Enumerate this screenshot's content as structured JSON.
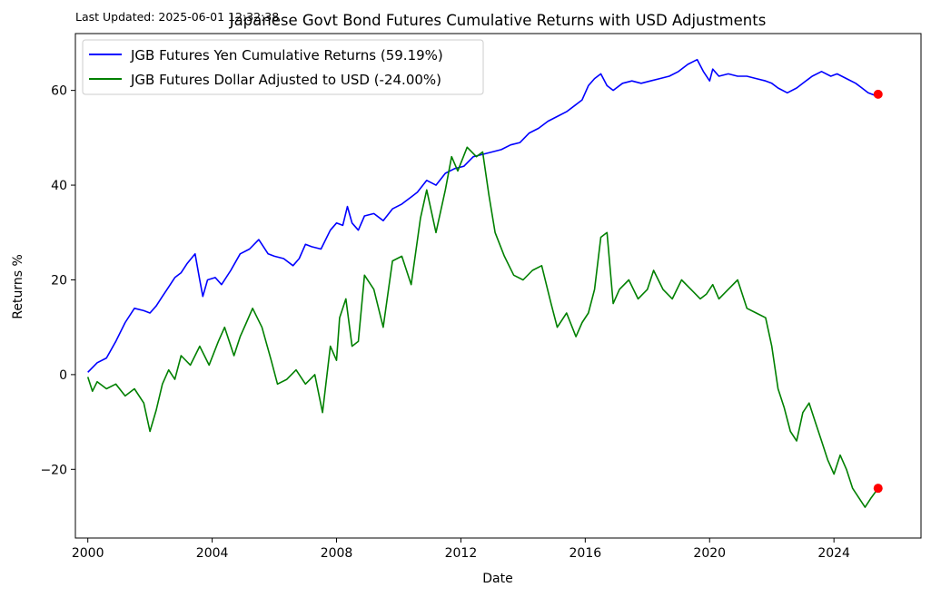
{
  "chart_data": {
    "type": "line",
    "title": "Japanese Govt Bond Futures Cumulative Returns with USD Adjustments",
    "annotation": "Last Updated: 2025-06-01 12:32:38",
    "xlabel": "Date",
    "ylabel": "Returns %",
    "xlim": [
      1999.6,
      2026.8
    ],
    "ylim": [
      -34.5,
      72
    ],
    "x_ticks": [
      2000,
      2004,
      2008,
      2012,
      2016,
      2020,
      2024
    ],
    "x_tick_labels": [
      "2000",
      "2004",
      "2008",
      "2012",
      "2016",
      "2020",
      "2024"
    ],
    "y_ticks": [
      -20,
      0,
      20,
      40,
      60
    ],
    "y_tick_labels": [
      "−20",
      "0",
      "20",
      "40",
      "60"
    ],
    "grid": false,
    "legend_position": "top-left",
    "series": [
      {
        "name": "JGB Futures Yen Cumulative Returns (59.19%)",
        "color": "#0000ff",
        "x": [
          2000.0,
          2000.3,
          2000.6,
          2000.9,
          2001.2,
          2001.5,
          2001.8,
          2002.0,
          2002.2,
          2002.4,
          2002.6,
          2002.8,
          2003.0,
          2003.2,
          2003.45,
          2003.6,
          2003.7,
          2003.85,
          2004.1,
          2004.3,
          2004.6,
          2004.9,
          2005.2,
          2005.5,
          2005.8,
          2006.0,
          2006.3,
          2006.6,
          2006.8,
          2007.0,
          2007.2,
          2007.5,
          2007.8,
          2008.0,
          2008.2,
          2008.35,
          2008.5,
          2008.7,
          2008.9,
          2009.2,
          2009.5,
          2009.8,
          2010.1,
          2010.4,
          2010.6,
          2010.9,
          2011.2,
          2011.5,
          2011.8,
          2012.1,
          2012.4,
          2012.7,
          2013.0,
          2013.3,
          2013.6,
          2013.9,
          2014.2,
          2014.5,
          2014.8,
          2015.1,
          2015.4,
          2015.7,
          2015.9,
          2016.1,
          2016.3,
          2016.5,
          2016.7,
          2016.9,
          2017.2,
          2017.5,
          2017.8,
          2018.1,
          2018.4,
          2018.7,
          2019.0,
          2019.3,
          2019.6,
          2019.8,
          2020.0,
          2020.1,
          2020.3,
          2020.6,
          2020.9,
          2021.2,
          2021.5,
          2021.8,
          2022.0,
          2022.2,
          2022.5,
          2022.8,
          2023.0,
          2023.3,
          2023.6,
          2023.9,
          2024.1,
          2024.4,
          2024.7,
          2024.9,
          2025.1,
          2025.3,
          2025.42
        ],
        "y": [
          0.5,
          2.5,
          3.5,
          7.0,
          11.0,
          14.0,
          13.5,
          13.0,
          14.5,
          16.5,
          18.5,
          20.5,
          21.5,
          23.5,
          25.5,
          20.0,
          16.5,
          20.0,
          20.5,
          19.0,
          22.0,
          25.5,
          26.5,
          28.5,
          25.5,
          25.0,
          24.5,
          23.0,
          24.5,
          27.5,
          27.0,
          26.5,
          30.5,
          32.0,
          31.5,
          35.5,
          32.0,
          30.5,
          33.5,
          34.0,
          32.5,
          35.0,
          36.0,
          37.5,
          38.5,
          41.0,
          40.0,
          42.5,
          43.5,
          44.0,
          46.0,
          46.5,
          47.0,
          47.5,
          48.5,
          49.0,
          51.0,
          52.0,
          53.5,
          54.5,
          55.5,
          57.0,
          58.0,
          61.0,
          62.5,
          63.5,
          61.0,
          60.0,
          61.5,
          62.0,
          61.5,
          62.0,
          62.5,
          63.0,
          64.0,
          65.5,
          66.5,
          64.0,
          62.0,
          64.5,
          63.0,
          63.5,
          63.0,
          63.0,
          62.5,
          62.0,
          61.5,
          60.5,
          59.5,
          60.5,
          61.5,
          63.0,
          64.0,
          63.0,
          63.5,
          62.5,
          61.5,
          60.5,
          59.5,
          59.0,
          59.19
        ]
      },
      {
        "name": "JGB Futures Dollar Adjusted to USD (-24.00%)",
        "color": "#008000",
        "x": [
          2000.0,
          2000.15,
          2000.3,
          2000.6,
          2000.9,
          2001.2,
          2001.5,
          2001.8,
          2002.0,
          2002.2,
          2002.4,
          2002.6,
          2002.8,
          2003.0,
          2003.3,
          2003.6,
          2003.9,
          2004.2,
          2004.4,
          2004.7,
          2004.9,
          2005.1,
          2005.3,
          2005.6,
          2005.9,
          2006.1,
          2006.4,
          2006.7,
          2007.0,
          2007.3,
          2007.55,
          2007.8,
          2008.0,
          2008.1,
          2008.3,
          2008.5,
          2008.7,
          2008.9,
          2009.2,
          2009.5,
          2009.8,
          2010.1,
          2010.4,
          2010.7,
          2010.9,
          2011.2,
          2011.5,
          2011.7,
          2011.9,
          2012.2,
          2012.5,
          2012.7,
          2012.9,
          2013.1,
          2013.4,
          2013.7,
          2014.0,
          2014.3,
          2014.6,
          2014.9,
          2015.1,
          2015.4,
          2015.7,
          2015.9,
          2016.1,
          2016.3,
          2016.5,
          2016.7,
          2016.9,
          2017.1,
          2017.4,
          2017.7,
          2018.0,
          2018.2,
          2018.5,
          2018.8,
          2019.1,
          2019.4,
          2019.7,
          2019.9,
          2020.1,
          2020.3,
          2020.6,
          2020.9,
          2021.2,
          2021.5,
          2021.8,
          2022.0,
          2022.2,
          2022.4,
          2022.6,
          2022.8,
          2023.0,
          2023.2,
          2023.4,
          2023.6,
          2023.8,
          2024.0,
          2024.2,
          2024.4,
          2024.6,
          2024.8,
          2025.0,
          2025.2,
          2025.42
        ],
        "y": [
          -0.5,
          -3.5,
          -1.5,
          -3.0,
          -2.0,
          -4.5,
          -3.0,
          -6.0,
          -12.0,
          -7.5,
          -2.0,
          1.0,
          -1.0,
          4.0,
          2.0,
          6.0,
          2.0,
          7.0,
          10.0,
          4.0,
          8.0,
          11.0,
          14.0,
          10.0,
          3.0,
          -2.0,
          -1.0,
          1.0,
          -2.0,
          0.0,
          -8.0,
          6.0,
          3.0,
          12.0,
          16.0,
          6.0,
          7.0,
          21.0,
          18.0,
          10.0,
          24.0,
          25.0,
          19.0,
          33.0,
          39.0,
          30.0,
          39.0,
          46.0,
          43.0,
          48.0,
          46.0,
          47.0,
          38.0,
          30.0,
          25.0,
          21.0,
          20.0,
          22.0,
          23.0,
          15.0,
          10.0,
          13.0,
          8.0,
          11.0,
          13.0,
          18.0,
          29.0,
          30.0,
          15.0,
          18.0,
          20.0,
          16.0,
          18.0,
          22.0,
          18.0,
          16.0,
          20.0,
          18.0,
          16.0,
          17.0,
          19.0,
          16.0,
          18.0,
          20.0,
          14.0,
          13.0,
          12.0,
          6.0,
          -3.0,
          -7.0,
          -12.0,
          -14.0,
          -8.0,
          -6.0,
          -10.0,
          -14.0,
          -18.0,
          -21.0,
          -17.0,
          -20.0,
          -24.0,
          -26.0,
          -28.0,
          -26.0,
          -24.0
        ]
      }
    ],
    "end_markers": {
      "color": "#ff0000",
      "points": [
        {
          "x": 2025.42,
          "y": 59.19
        },
        {
          "x": 2025.42,
          "y": -24.0
        }
      ]
    }
  }
}
